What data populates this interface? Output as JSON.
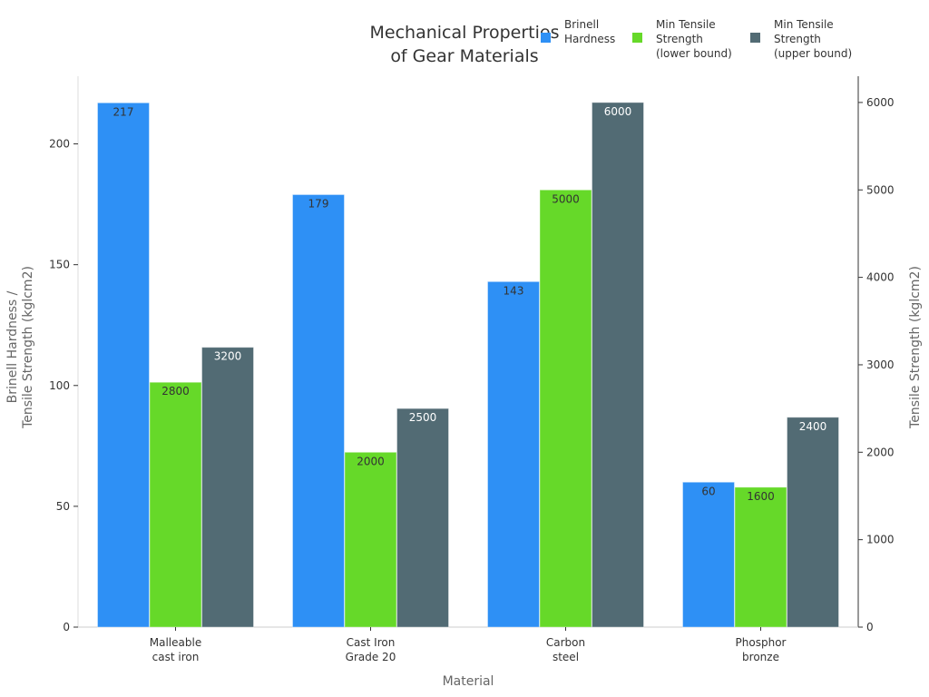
{
  "chart_data": {
    "type": "bar",
    "title_lines": [
      "Mechanical Properties",
      "of Gear Materials"
    ],
    "xlabel": "Material",
    "ylabel_left_lines": [
      "Brinell Hardness /",
      "Tensile Strength (kglcm2)"
    ],
    "ylabel_right": "Tensile Strength (kglcm2)",
    "categories": [
      [
        "Malleable",
        "cast iron"
      ],
      [
        "Cast Iron",
        "Grade 20"
      ],
      [
        "Carbon",
        "steel"
      ],
      [
        "Phosphor",
        "bronze"
      ]
    ],
    "ylim_left": [
      0,
      228
    ],
    "ylim_right": [
      0,
      6300
    ],
    "yticks_left": [
      "0",
      "50",
      "100",
      "150",
      "200"
    ],
    "yticks_right": [
      "0",
      "1000",
      "2000",
      "3000",
      "4000",
      "5000",
      "6000"
    ],
    "legend_position": "top-right",
    "series": [
      {
        "name_lines": [
          "Brinell",
          "Hardness"
        ],
        "axis": "left",
        "color": "#2e90f5",
        "label_color": "#333333",
        "values": [
          217,
          179,
          143,
          60
        ],
        "labels": [
          "217",
          "179",
          "143",
          "60"
        ]
      },
      {
        "name_lines": [
          "Min Tensile",
          "Strength",
          "(lower bound)"
        ],
        "axis": "right",
        "color": "#66d929",
        "label_color": "#333333",
        "values": [
          2800,
          2000,
          5000,
          1600
        ],
        "labels": [
          "2800",
          "2000",
          "5000",
          "1600"
        ]
      },
      {
        "name_lines": [
          "Min Tensile",
          "Strength",
          "(upper bound)"
        ],
        "axis": "right",
        "color": "#526b74",
        "label_color": "#ffffff",
        "values": [
          3200,
          2500,
          6000,
          2400
        ],
        "labels": [
          "3200",
          "2500",
          "6000",
          "2400"
        ]
      }
    ]
  }
}
